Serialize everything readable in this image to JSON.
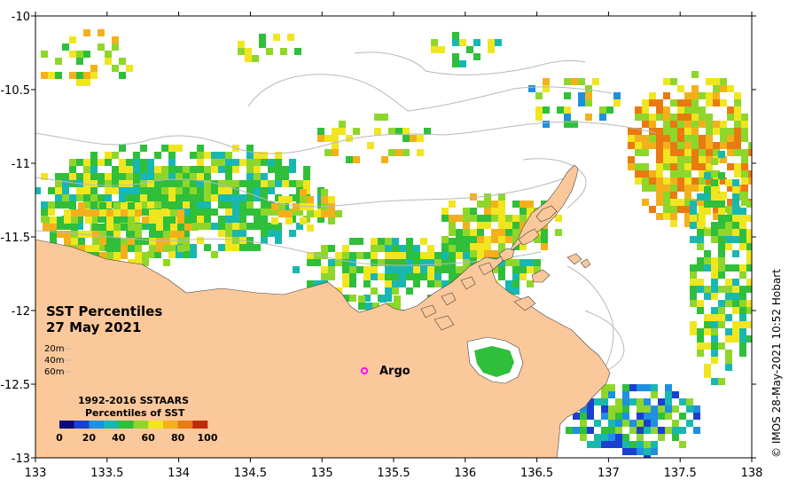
{
  "map": {
    "title_line1": "SST Percentiles",
    "title_line2": "27 May 2021",
    "credit": "© IMOS 28-May-2021 10:52 Hobart",
    "x_ticks": [
      "133",
      "133.5",
      "134",
      "134.5",
      "135",
      "135.5",
      "136",
      "136.5",
      "137",
      "137.5",
      "138"
    ],
    "y_ticks": [
      "-10",
      "-10.5",
      "-11",
      "-11.5",
      "-12",
      "-12.5",
      "-13"
    ],
    "depth_labels": [
      "20m",
      "40m",
      "60m"
    ],
    "argo_label": "Argo",
    "argo_location": {
      "lon": 135.3,
      "lat": -12.45
    },
    "extent": {
      "lon_min": 133,
      "lon_max": 138,
      "lat_min": -13,
      "lat_max": -10
    }
  },
  "legend": {
    "title_line1": "1992-2016 SSTAARS",
    "title_line2": "Percentiles of SST",
    "tick_labels": [
      "0",
      "20",
      "40",
      "60",
      "80",
      "100"
    ],
    "colors": [
      "#0a0a7a",
      "#1b3fd0",
      "#1f8fe0",
      "#18b8b0",
      "#2fbf3a",
      "#8fd62a",
      "#f0e620",
      "#f4b01a",
      "#e87a10",
      "#c02a0a"
    ]
  },
  "colors": {
    "land": "#fbc89b",
    "ocean_nodata": "#ffffff",
    "contour": "#b8b8b8",
    "argo_marker": "#ff00ff"
  }
}
